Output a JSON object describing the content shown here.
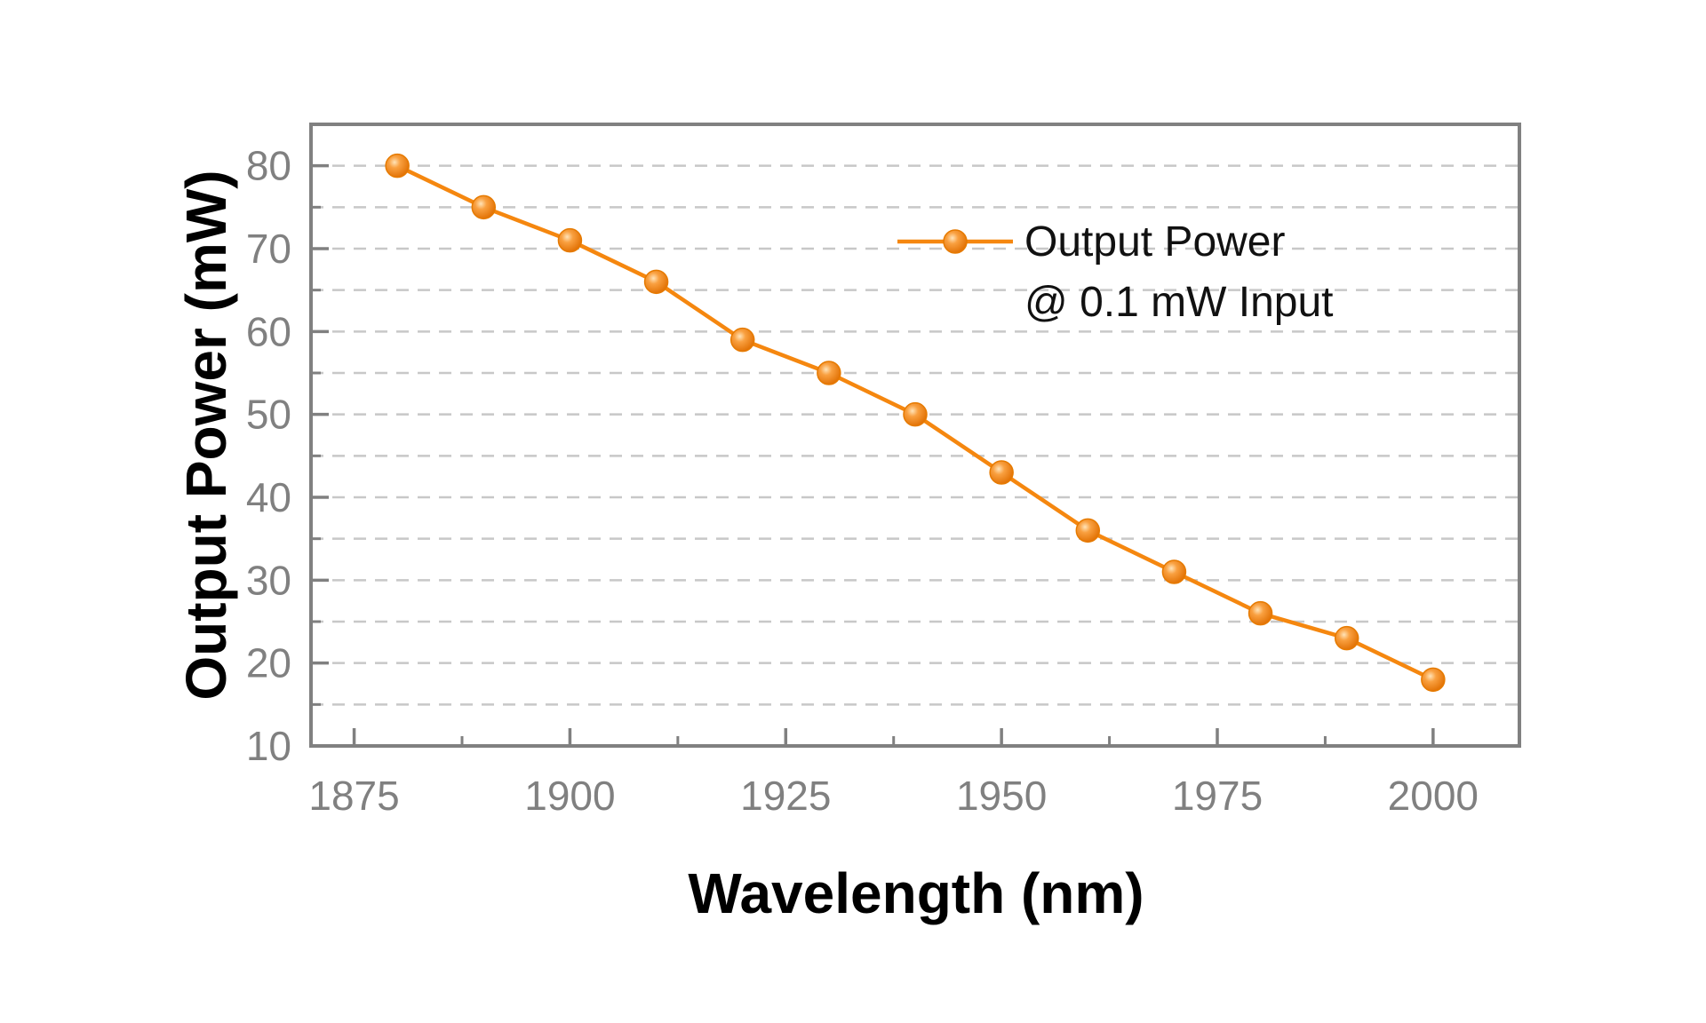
{
  "chart_data": {
    "type": "line",
    "xlabel": "Wavelength (nm)",
    "ylabel": "Output Power (mW)",
    "xlim": [
      1870,
      2010
    ],
    "ylim": [
      10,
      85
    ],
    "xticks": [
      1875,
      1900,
      1925,
      1950,
      1975,
      2000
    ],
    "xticks_minor": [
      1887.5,
      1912.5,
      1937.5,
      1962.5,
      1987.5
    ],
    "yticks": [
      10,
      20,
      30,
      40,
      50,
      60,
      70,
      80
    ],
    "yticks_minor": [
      15,
      25,
      35,
      45,
      55,
      65,
      75
    ],
    "grid": "dashed horizontal",
    "legend_position": "top-right",
    "series": [
      {
        "name": "Output Power",
        "name_line2": "@ 0.1 mW Input",
        "color": "#F5870F",
        "x": [
          1880,
          1890,
          1900,
          1910,
          1920,
          1930,
          1940,
          1950,
          1960,
          1970,
          1980,
          1990,
          2000
        ],
        "y": [
          80,
          75,
          71,
          66,
          59,
          55,
          50,
          43,
          36,
          31,
          26,
          23,
          18
        ]
      }
    ]
  }
}
